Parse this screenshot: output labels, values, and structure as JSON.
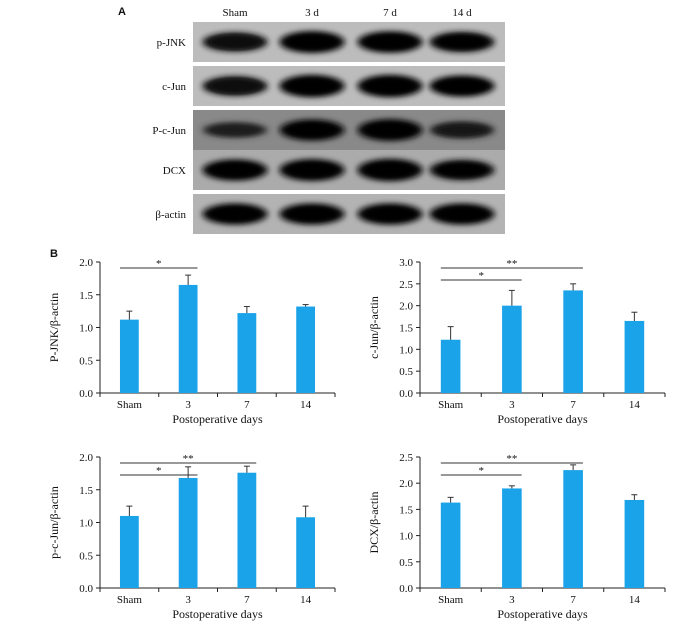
{
  "panel_a": {
    "label": "A",
    "lanes": [
      "Sham",
      "3 d",
      "7 d",
      "14 d"
    ],
    "rows": [
      {
        "label": "p-JNK",
        "intensity": [
          0.75,
          0.95,
          0.92,
          0.85
        ],
        "bg": 0.25
      },
      {
        "label": "c-Jun",
        "intensity": [
          0.8,
          1.0,
          1.0,
          0.9
        ],
        "bg": 0.25
      },
      {
        "label": "P-c-Jun",
        "intensity": [
          0.4,
          0.9,
          0.95,
          0.55
        ],
        "bg": 0.55
      },
      {
        "label": "DCX",
        "intensity": [
          0.9,
          0.95,
          1.0,
          0.85
        ],
        "bg": 0.35
      },
      {
        "label": "β-actin",
        "intensity": [
          0.9,
          0.9,
          0.9,
          0.9
        ],
        "bg": 0.3
      }
    ]
  },
  "panel_b": {
    "label": "B"
  },
  "chart_data": [
    {
      "type": "bar",
      "categories": [
        "Sham",
        "3",
        "7",
        "14"
      ],
      "values": [
        1.12,
        1.65,
        1.22,
        1.32
      ],
      "errors": [
        0.13,
        0.15,
        0.1,
        0.03
      ],
      "xlabel": "Postoperative days",
      "ylabel": "P-JNK/β-actin",
      "ylim": [
        0,
        2.0
      ],
      "yticks": [
        "0.0",
        "0.5",
        "1.0",
        "1.5",
        "2.0"
      ],
      "color": "#1aa3e8",
      "significance": [
        {
          "from": 0,
          "to": 1,
          "label": "*"
        }
      ]
    },
    {
      "type": "bar",
      "categories": [
        "Sham",
        "3",
        "7",
        "14"
      ],
      "values": [
        1.22,
        2.0,
        2.35,
        1.65
      ],
      "errors": [
        0.3,
        0.35,
        0.15,
        0.2
      ],
      "xlabel": "Postoperative days",
      "ylabel": "c-Jun/β-actin",
      "ylim": [
        0,
        3.0
      ],
      "yticks": [
        "0.0",
        "0.5",
        "1.0",
        "1.5",
        "2.0",
        "2.5",
        "3.0"
      ],
      "color": "#1aa3e8",
      "significance": [
        {
          "from": 0,
          "to": 1,
          "label": "*"
        },
        {
          "from": 0,
          "to": 2,
          "label": "**"
        }
      ]
    },
    {
      "type": "bar",
      "categories": [
        "Sham",
        "3",
        "7",
        "14"
      ],
      "values": [
        1.1,
        1.68,
        1.76,
        1.08
      ],
      "errors": [
        0.15,
        0.17,
        0.1,
        0.17
      ],
      "xlabel": "Postoperative days",
      "ylabel": "p-c-Jun/β-actin",
      "ylim": [
        0,
        2.0
      ],
      "yticks": [
        "0.0",
        "0.5",
        "1.0",
        "1.5",
        "2.0"
      ],
      "color": "#1aa3e8",
      "significance": [
        {
          "from": 0,
          "to": 1,
          "label": "*"
        },
        {
          "from": 0,
          "to": 2,
          "label": "**"
        }
      ]
    },
    {
      "type": "bar",
      "categories": [
        "Sham",
        "3",
        "7",
        "14"
      ],
      "values": [
        1.63,
        1.9,
        2.25,
        1.68
      ],
      "errors": [
        0.1,
        0.05,
        0.1,
        0.1
      ],
      "xlabel": "Postoperative days",
      "ylabel": "DCX/β-actin",
      "ylim": [
        0,
        2.5
      ],
      "yticks": [
        "0.0",
        "0.5",
        "1.0",
        "1.5",
        "2.0",
        "2.5"
      ],
      "color": "#1aa3e8",
      "significance": [
        {
          "from": 0,
          "to": 1,
          "label": "*"
        },
        {
          "from": 0,
          "to": 2,
          "label": "**"
        }
      ]
    }
  ]
}
